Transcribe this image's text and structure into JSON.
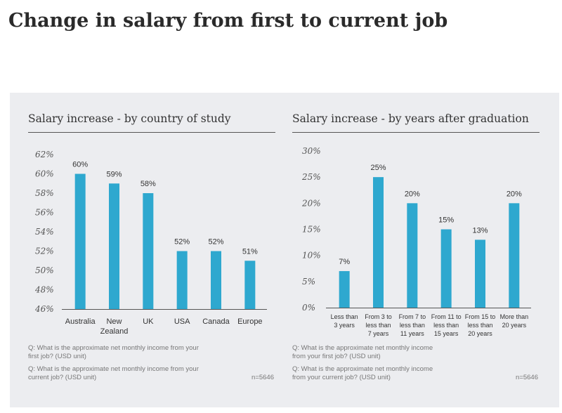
{
  "title": "Change in salary from first to current job",
  "colors": {
    "bar": "#2ea8cf",
    "axis": "#555555",
    "panel": "#ecedf0"
  },
  "chart_data": [
    {
      "type": "bar",
      "title": "Salary increase - by country of study",
      "categories": [
        "Australia",
        "New Zealand",
        "UK",
        "USA",
        "Canada",
        "Europe"
      ],
      "values": [
        60,
        59,
        58,
        52,
        52,
        51
      ],
      "value_labels": [
        "60%",
        "59%",
        "58%",
        "52%",
        "52%",
        "51%"
      ],
      "yticks": [
        "46%",
        "48%",
        "50%",
        "52%",
        "54%",
        "56%",
        "58%",
        "60%",
        "62%"
      ],
      "ylim": [
        46,
        62
      ],
      "grid": false,
      "notes": [
        "Q: What is the approximate net monthly income from your first job? (USD unit)",
        "Q: What is the approximate net monthly income from your current job? (USD unit)"
      ],
      "n_label": "n=5646"
    },
    {
      "type": "bar",
      "title": "Salary increase - by years after graduation",
      "categories": [
        "Less than 3 years",
        "From 3 to less than 7 years",
        "From 7 to less than 11 years",
        "From 11 to less than 15 years",
        "From 15 to less than 20 years",
        "More than 20 years"
      ],
      "values": [
        7,
        25,
        20,
        15,
        13,
        20
      ],
      "value_labels": [
        "7%",
        "25%",
        "20%",
        "15%",
        "13%",
        "20%"
      ],
      "yticks": [
        "0%",
        "5%",
        "10%",
        "15%",
        "20%",
        "25%",
        "30%"
      ],
      "ylim": [
        0,
        30
      ],
      "grid": false,
      "notes": [
        "Q: What is the approximate net monthly income from your first job? (USD unit)",
        "Q: What is the approximate net monthly income from your current job? (USD unit)"
      ],
      "n_label": "n=5646"
    }
  ]
}
